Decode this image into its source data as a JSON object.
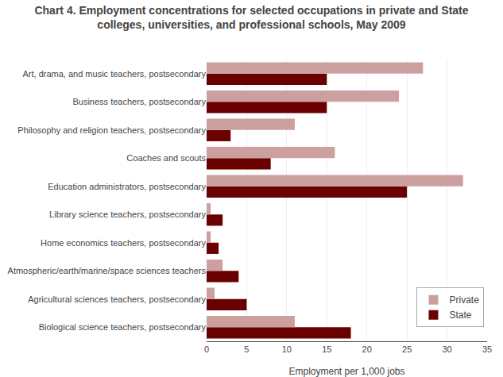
{
  "chart_data": {
    "type": "bar",
    "orientation": "horizontal",
    "title": "Chart 4. Employment concentrations for selected occupations in private and State\ncolleges, universities, and professional schools, May 2009",
    "categories": [
      "Biological science teachers, postsecondary",
      "Agricultural sciences teachers, postsecondary",
      "Atmospheric/earth/marine/space sciences teachers",
      "Home economics teachers, postsecondary",
      "Library science teachers, postsecondary",
      "Education administrators, postsecondary",
      "Coaches and scouts",
      "Philosophy and religion teachers, postsecondary",
      "Business teachers, postsecondary",
      "Art, drama, and music teachers, postsecondary"
    ],
    "series": [
      {
        "name": "Private",
        "color": "#cda0a0",
        "values": [
          11.0,
          1.0,
          2.0,
          0.5,
          0.5,
          32.0,
          16.0,
          11.0,
          24.0,
          27.0
        ]
      },
      {
        "name": "State",
        "color": "#6b0000",
        "values": [
          18.0,
          5.0,
          4.0,
          1.5,
          2.0,
          25.0,
          8.0,
          3.0,
          15.0,
          15.0
        ]
      }
    ],
    "xlabel": "Employment per 1,000 jobs",
    "xlim": [
      0,
      35
    ],
    "xticks": [
      0,
      5,
      10,
      15,
      20,
      25,
      30,
      35
    ],
    "grid": true,
    "legend": "lower right"
  }
}
